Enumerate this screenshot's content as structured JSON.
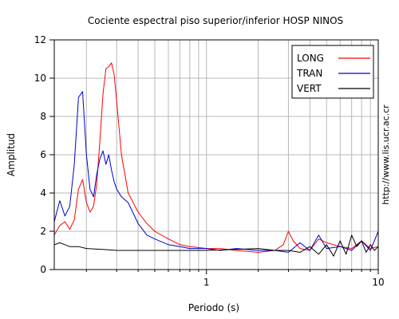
{
  "chart_data": {
    "type": "line",
    "title": "Cociente espectral piso superior/inferior  HOSP NINOS",
    "xlabel": "Periodo (s)",
    "ylabel": "Amplitud",
    "xscale": "log",
    "xlim": [
      0.13,
      10
    ],
    "ylim": [
      0,
      12
    ],
    "x_tick_labels": [
      "1",
      "10"
    ],
    "y_ticks": [
      0,
      2,
      4,
      6,
      8,
      10,
      12
    ],
    "grid": true,
    "legend_position": "top-right",
    "side_note": "http://www.lis.ucr.ac.cr",
    "series": [
      {
        "name": "LONG",
        "color": "#ff0000",
        "x": [
          0.13,
          0.14,
          0.15,
          0.16,
          0.17,
          0.18,
          0.19,
          0.2,
          0.21,
          0.22,
          0.23,
          0.24,
          0.25,
          0.26,
          0.27,
          0.28,
          0.29,
          0.3,
          0.32,
          0.35,
          0.4,
          0.45,
          0.5,
          0.6,
          0.7,
          0.8,
          1.0,
          1.2,
          1.5,
          2.0,
          2.5,
          2.8,
          3.0,
          3.2,
          3.5,
          4.0,
          4.5,
          5.0,
          6.0,
          7.0,
          8.0,
          9.0,
          10.0
        ],
        "y": [
          1.8,
          2.3,
          2.5,
          2.1,
          2.6,
          4.2,
          4.7,
          3.5,
          3.0,
          3.3,
          4.5,
          6.8,
          9.2,
          10.5,
          10.6,
          10.8,
          10.2,
          8.8,
          6.0,
          4.0,
          3.0,
          2.4,
          2.0,
          1.6,
          1.3,
          1.2,
          1.1,
          1.1,
          1.0,
          0.9,
          1.0,
          1.3,
          2.0,
          1.5,
          1.1,
          1.0,
          1.6,
          1.4,
          1.2,
          1.1,
          1.5,
          1.1,
          1.2
        ]
      },
      {
        "name": "TRAN",
        "color": "#0000cc",
        "x": [
          0.13,
          0.14,
          0.15,
          0.16,
          0.17,
          0.18,
          0.19,
          0.2,
          0.21,
          0.22,
          0.23,
          0.24,
          0.25,
          0.26,
          0.27,
          0.28,
          0.29,
          0.3,
          0.32,
          0.35,
          0.4,
          0.45,
          0.5,
          0.6,
          0.7,
          0.8,
          1.0,
          1.2,
          1.5,
          2.0,
          2.5,
          3.0,
          3.5,
          4.0,
          4.5,
          5.0,
          6.0,
          7.0,
          8.0,
          9.0,
          10.0
        ],
        "y": [
          2.5,
          3.6,
          2.8,
          3.3,
          5.5,
          9.0,
          9.3,
          6.0,
          4.2,
          3.8,
          5.0,
          5.8,
          6.2,
          5.5,
          6.0,
          5.2,
          4.6,
          4.2,
          3.8,
          3.5,
          2.4,
          1.8,
          1.6,
          1.3,
          1.2,
          1.1,
          1.1,
          1.0,
          1.1,
          1.0,
          1.0,
          0.9,
          1.4,
          1.0,
          1.8,
          1.1,
          1.2,
          1.0,
          1.5,
          1.0,
          2.0
        ]
      },
      {
        "name": "VERT",
        "color": "#000000",
        "x": [
          0.13,
          0.14,
          0.15,
          0.16,
          0.18,
          0.2,
          0.25,
          0.3,
          0.4,
          0.5,
          0.7,
          1.0,
          1.5,
          2.0,
          2.5,
          3.0,
          3.5,
          4.0,
          4.5,
          5.0,
          5.5,
          6.0,
          6.5,
          7.0,
          7.5,
          8.0,
          8.5,
          9.0,
          9.5,
          10.0
        ],
        "y": [
          1.3,
          1.4,
          1.3,
          1.2,
          1.2,
          1.1,
          1.05,
          1.0,
          1.0,
          1.0,
          1.0,
          1.0,
          1.05,
          1.1,
          1.0,
          1.0,
          0.9,
          1.2,
          0.8,
          1.3,
          0.7,
          1.5,
          0.8,
          1.8,
          1.2,
          1.5,
          0.9,
          1.3,
          1.0,
          1.2
        ]
      }
    ]
  }
}
